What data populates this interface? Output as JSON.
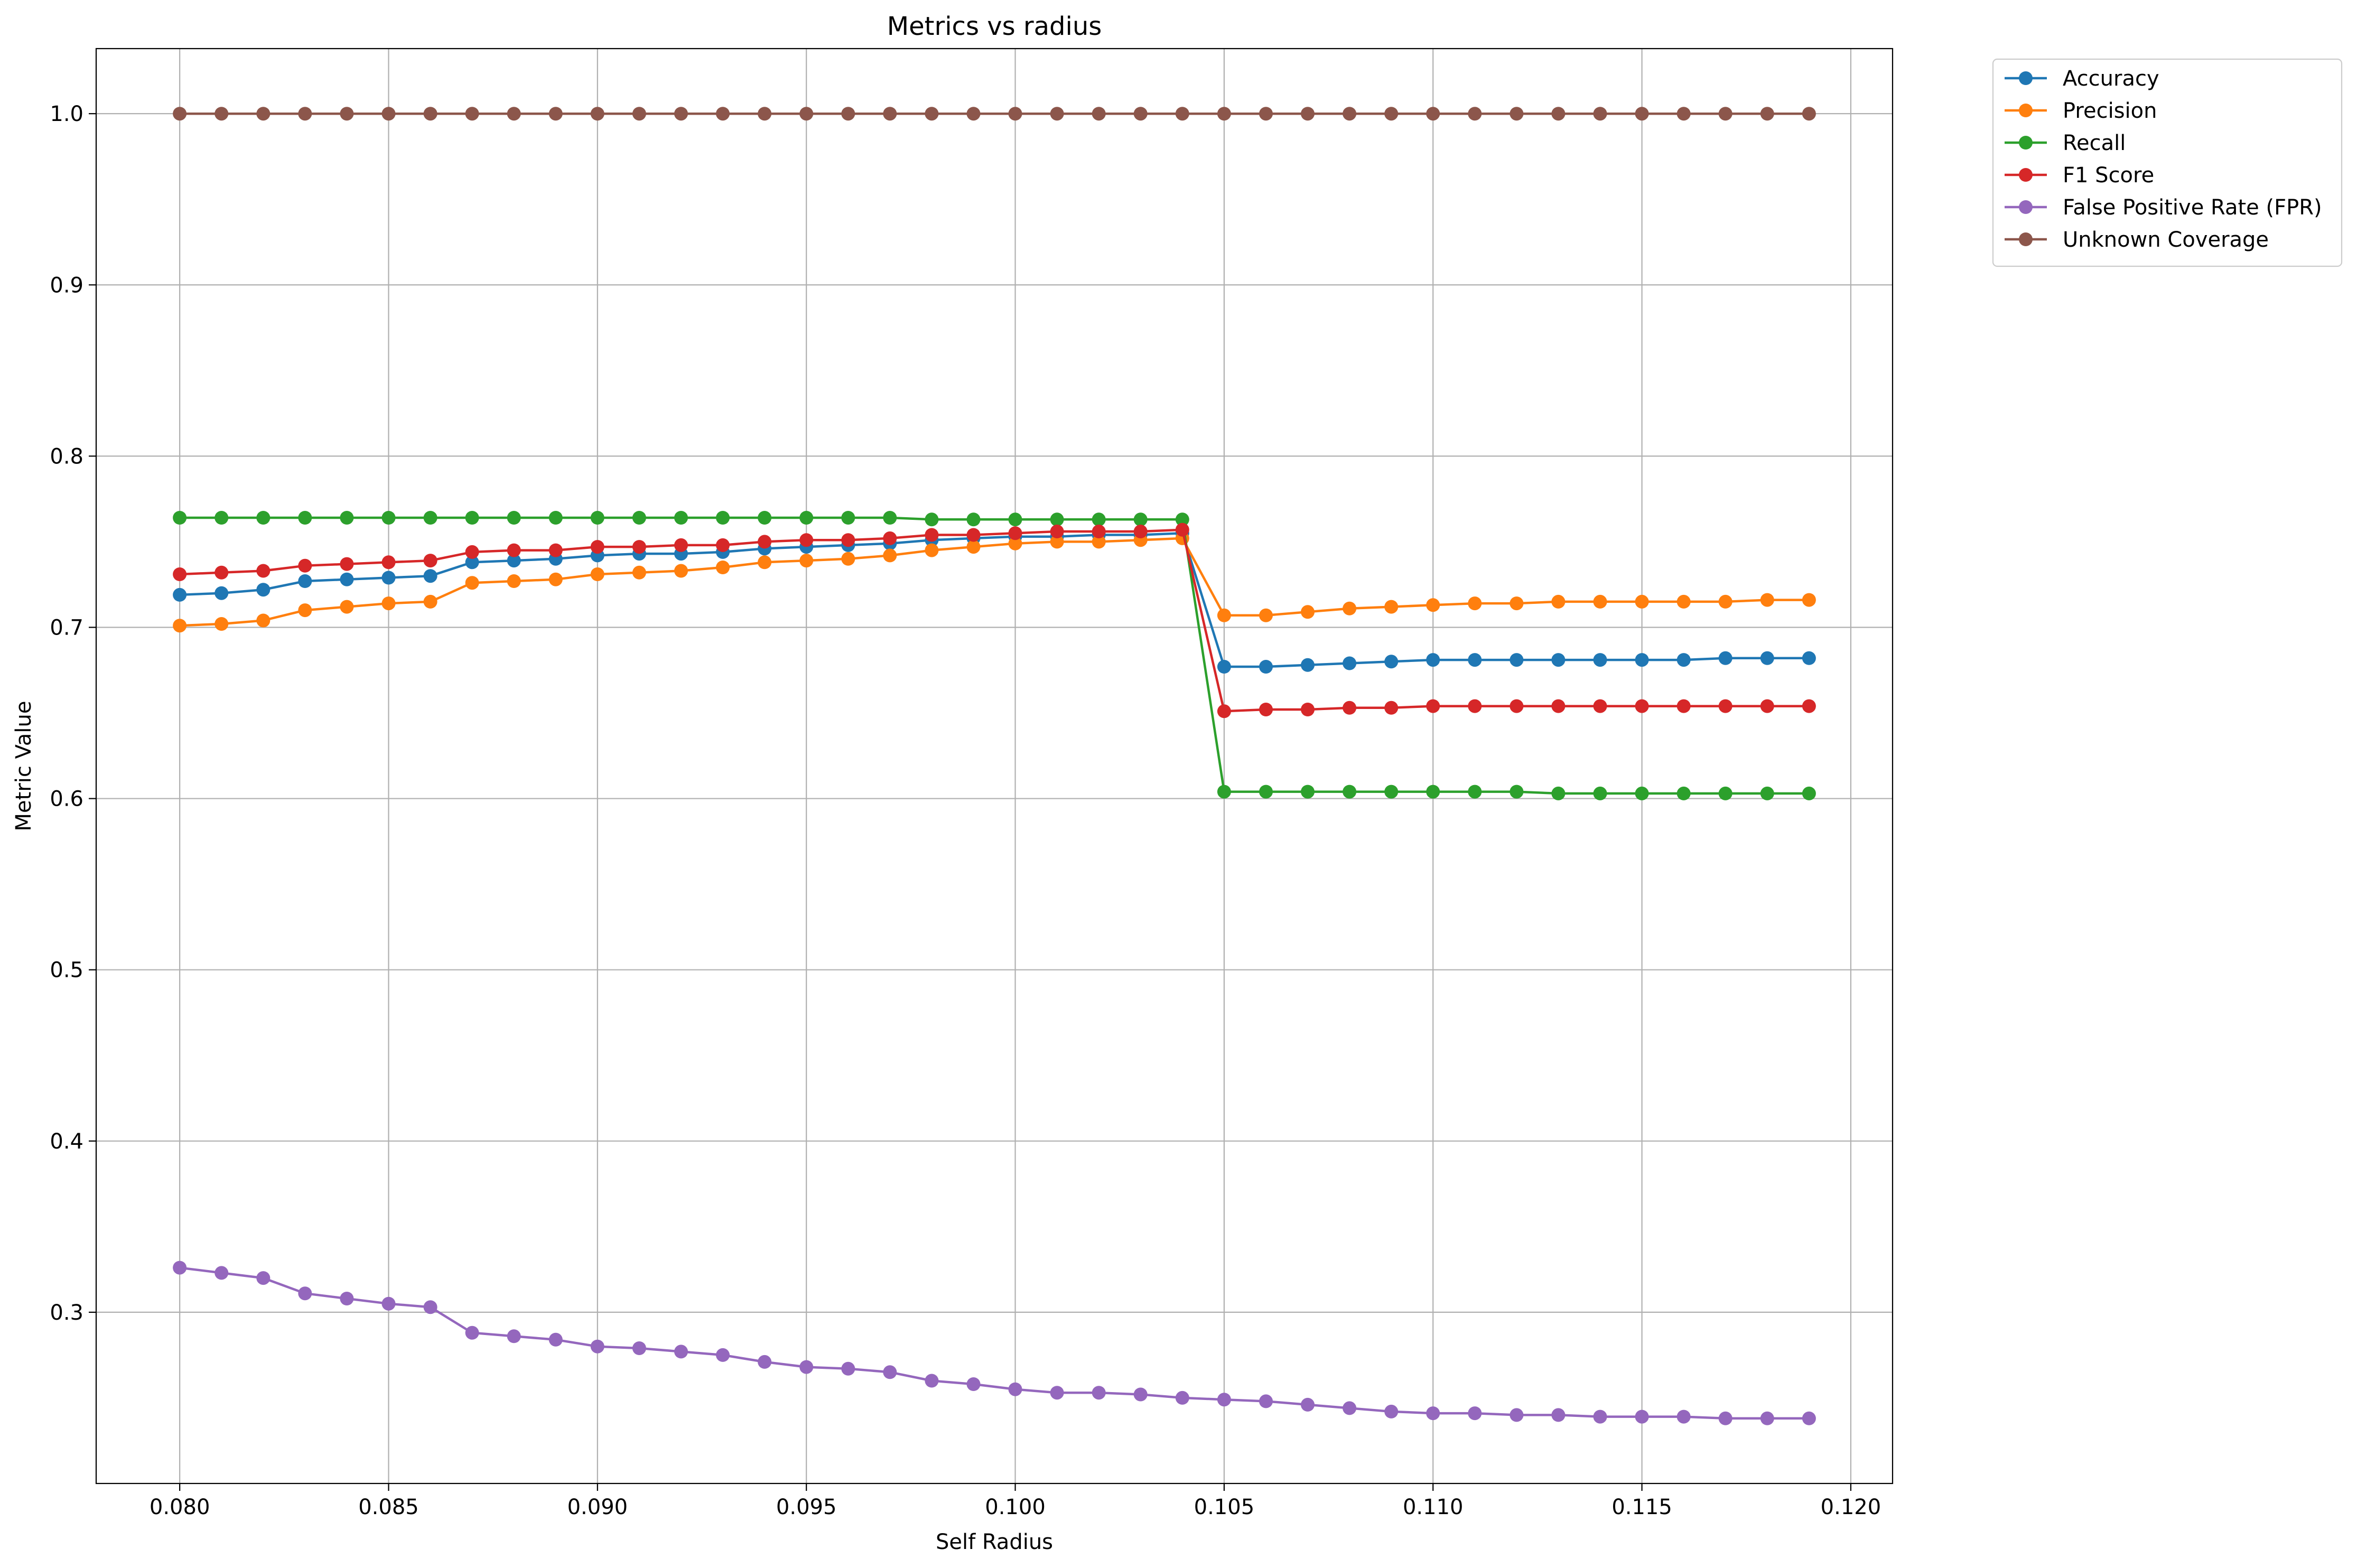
{
  "chart_data": {
    "type": "line",
    "title": "Metrics vs radius",
    "xlabel": "Self Radius",
    "ylabel": "Metric Value",
    "xlim": [
      0.078,
      0.121
    ],
    "ylim": [
      0.2,
      1.038
    ],
    "xticks": [
      0.08,
      0.085,
      0.09,
      0.095,
      0.1,
      0.105,
      0.11,
      0.115,
      0.12
    ],
    "xtick_labels": [
      "0.080",
      "0.085",
      "0.090",
      "0.095",
      "0.100",
      "0.105",
      "0.110",
      "0.115",
      "0.120"
    ],
    "yticks": [
      0.3,
      0.4,
      0.5,
      0.6,
      0.7,
      0.8,
      0.9,
      1.0
    ],
    "ytick_labels": [
      "0.3",
      "0.4",
      "0.5",
      "0.6",
      "0.7",
      "0.8",
      "0.9",
      "1.0"
    ],
    "grid": true,
    "legend_position": "outside-top-right",
    "x": [
      0.08,
      0.081,
      0.082,
      0.083,
      0.084,
      0.085,
      0.086,
      0.087,
      0.088,
      0.089,
      0.09,
      0.091,
      0.092,
      0.093,
      0.094,
      0.095,
      0.096,
      0.097,
      0.098,
      0.099,
      0.1,
      0.101,
      0.102,
      0.103,
      0.104,
      0.105,
      0.106,
      0.107,
      0.108,
      0.109,
      0.11,
      0.111,
      0.112,
      0.113,
      0.114,
      0.115,
      0.116,
      0.117,
      0.118,
      0.119
    ],
    "series": [
      {
        "name": "Accuracy",
        "color": "#1f77b4",
        "values": [
          0.719,
          0.72,
          0.722,
          0.727,
          0.728,
          0.729,
          0.73,
          0.738,
          0.739,
          0.74,
          0.742,
          0.743,
          0.743,
          0.744,
          0.746,
          0.747,
          0.748,
          0.749,
          0.751,
          0.752,
          0.753,
          0.753,
          0.754,
          0.754,
          0.755,
          0.677,
          0.677,
          0.678,
          0.679,
          0.68,
          0.681,
          0.681,
          0.681,
          0.681,
          0.681,
          0.681,
          0.681,
          0.682,
          0.682,
          0.682
        ]
      },
      {
        "name": "Precision",
        "color": "#ff7f0e",
        "values": [
          0.701,
          0.702,
          0.704,
          0.71,
          0.712,
          0.714,
          0.715,
          0.726,
          0.727,
          0.728,
          0.731,
          0.732,
          0.733,
          0.735,
          0.738,
          0.739,
          0.74,
          0.742,
          0.745,
          0.747,
          0.749,
          0.75,
          0.75,
          0.751,
          0.752,
          0.707,
          0.707,
          0.709,
          0.711,
          0.712,
          0.713,
          0.714,
          0.714,
          0.715,
          0.715,
          0.715,
          0.715,
          0.715,
          0.716,
          0.716
        ]
      },
      {
        "name": "Recall",
        "color": "#2ca02c",
        "values": [
          0.764,
          0.764,
          0.764,
          0.764,
          0.764,
          0.764,
          0.764,
          0.764,
          0.764,
          0.764,
          0.764,
          0.764,
          0.764,
          0.764,
          0.764,
          0.764,
          0.764,
          0.764,
          0.763,
          0.763,
          0.763,
          0.763,
          0.763,
          0.763,
          0.763,
          0.604,
          0.604,
          0.604,
          0.604,
          0.604,
          0.604,
          0.604,
          0.604,
          0.603,
          0.603,
          0.603,
          0.603,
          0.603,
          0.603,
          0.603
        ]
      },
      {
        "name": "F1 Score",
        "color": "#d62728",
        "values": [
          0.731,
          0.732,
          0.733,
          0.736,
          0.737,
          0.738,
          0.739,
          0.744,
          0.745,
          0.745,
          0.747,
          0.747,
          0.748,
          0.748,
          0.75,
          0.751,
          0.751,
          0.752,
          0.754,
          0.754,
          0.755,
          0.756,
          0.756,
          0.756,
          0.757,
          0.651,
          0.652,
          0.652,
          0.653,
          0.653,
          0.654,
          0.654,
          0.654,
          0.654,
          0.654,
          0.654,
          0.654,
          0.654,
          0.654,
          0.654
        ]
      },
      {
        "name": "False Positive Rate (FPR)",
        "color": "#9467bd",
        "values": [
          0.326,
          0.323,
          0.32,
          0.311,
          0.308,
          0.305,
          0.303,
          0.288,
          0.286,
          0.284,
          0.28,
          0.279,
          0.277,
          0.275,
          0.271,
          0.268,
          0.267,
          0.265,
          0.26,
          0.258,
          0.255,
          0.253,
          0.253,
          0.252,
          0.25,
          0.249,
          0.248,
          0.246,
          0.244,
          0.242,
          0.241,
          0.241,
          0.24,
          0.24,
          0.239,
          0.239,
          0.239,
          0.238,
          0.238,
          0.238
        ]
      },
      {
        "name": "Unknown Coverage",
        "color": "#8c564b",
        "values": [
          1.0,
          1.0,
          1.0,
          1.0,
          1.0,
          1.0,
          1.0,
          1.0,
          1.0,
          1.0,
          1.0,
          1.0,
          1.0,
          1.0,
          1.0,
          1.0,
          1.0,
          1.0,
          1.0,
          1.0,
          1.0,
          1.0,
          1.0,
          1.0,
          1.0,
          1.0,
          1.0,
          1.0,
          1.0,
          1.0,
          1.0,
          1.0,
          1.0,
          1.0,
          1.0,
          1.0,
          1.0,
          1.0,
          1.0,
          1.0
        ]
      }
    ]
  }
}
